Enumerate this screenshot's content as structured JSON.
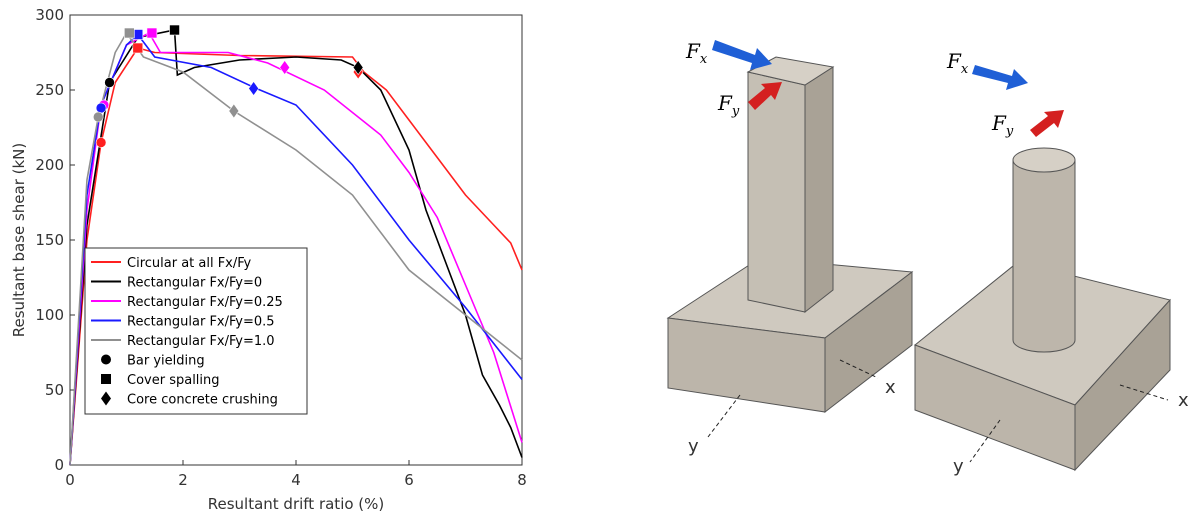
{
  "chart_data": {
    "type": "line",
    "xlabel": "Resultant drift ratio (%)",
    "ylabel": "Resultant base shear (kN)",
    "xlim": [
      0,
      8
    ],
    "ylim": [
      0,
      300
    ],
    "xticks": [
      0,
      2,
      4,
      6,
      8
    ],
    "yticks": [
      0,
      50,
      100,
      150,
      200,
      250,
      300
    ],
    "legend": "lower-left",
    "series": [
      {
        "name": "Circular at all Fx/Fy",
        "color": "#ff2020",
        "x": [
          0,
          0.3,
          0.55,
          0.8,
          1.2,
          1.5,
          3,
          5,
          5.2,
          5.6,
          6,
          6.5,
          7,
          7.5,
          7.8,
          8
        ],
        "values": [
          0,
          150,
          215,
          255,
          278,
          275,
          273,
          272,
          262,
          250,
          230,
          205,
          180,
          160,
          148,
          130
        ],
        "yielding": [
          0.55,
          215
        ],
        "spalling": [
          1.2,
          278
        ],
        "crushing": [
          5.1,
          262
        ]
      },
      {
        "name": "Rectangular Fx/Fy=0",
        "color": "#000000",
        "x": [
          0,
          0.3,
          0.7,
          1.2,
          1.85,
          1.9,
          2.2,
          3,
          4,
          4.8,
          5.1,
          5.5,
          6,
          6.3,
          6.6,
          7,
          7.3,
          7.6,
          7.8,
          8
        ],
        "values": [
          0,
          160,
          255,
          285,
          290,
          260,
          265,
          270,
          272,
          270,
          265,
          250,
          210,
          170,
          140,
          100,
          60,
          40,
          25,
          5
        ],
        "yielding": [
          0.7,
          255
        ],
        "spalling": [
          1.85,
          290
        ],
        "crushing": [
          5.1,
          265
        ]
      },
      {
        "name": "Rectangular Fx/Fy=0.25",
        "color": "#ff00ff",
        "x": [
          0,
          0.3,
          0.55,
          1,
          1.4,
          1.6,
          2.8,
          3.5,
          4.5,
          5.5,
          6,
          6.5,
          7,
          7.5,
          8
        ],
        "values": [
          0,
          170,
          240,
          280,
          288,
          275,
          275,
          268,
          250,
          220,
          195,
          165,
          120,
          75,
          15
        ],
        "yielding": [
          0.6,
          240
        ],
        "spalling": [
          1.45,
          288
        ],
        "crushing": [
          3.8,
          265
        ]
      },
      {
        "name": "Rectangular Fx/Fy=0.5",
        "color": "#1a1aff",
        "x": [
          0,
          0.3,
          0.55,
          1,
          1.2,
          1.5,
          2.5,
          3.3,
          4,
          5,
          6,
          7,
          8
        ],
        "values": [
          0,
          180,
          240,
          280,
          287,
          272,
          265,
          251,
          240,
          200,
          150,
          105,
          57
        ],
        "yielding": [
          0.55,
          238
        ],
        "spalling": [
          1.2,
          287
        ],
        "crushing": [
          3.25,
          251
        ]
      },
      {
        "name": "Rectangular Fx/Fy=1.0",
        "color": "#909090",
        "x": [
          0,
          0.3,
          0.5,
          0.8,
          1,
          1.3,
          2,
          2.9,
          4,
          5,
          6,
          7,
          7.5,
          8
        ],
        "values": [
          0,
          190,
          232,
          275,
          288,
          272,
          262,
          236,
          210,
          180,
          130,
          100,
          85,
          70
        ],
        "yielding": [
          0.5,
          232
        ],
        "spalling": [
          1.05,
          288
        ],
        "crushing": [
          2.9,
          236
        ]
      }
    ],
    "marker_legend": [
      {
        "name": "Bar yielding",
        "shape": "circle"
      },
      {
        "name": "Cover spalling",
        "shape": "square"
      },
      {
        "name": "Core concrete crushing",
        "shape": "diamond"
      }
    ]
  },
  "diagram": {
    "columns": [
      {
        "force_x": {
          "symbol": "F",
          "subscript": "x"
        },
        "force_y": {
          "symbol": "F",
          "subscript": "y"
        },
        "axis_x": "x",
        "axis_y": "y"
      },
      {
        "force_x": {
          "symbol": "F",
          "subscript": "x"
        },
        "force_y": {
          "symbol": "F",
          "subscript": "y"
        },
        "axis_x": "x",
        "axis_y": "y"
      }
    ]
  }
}
